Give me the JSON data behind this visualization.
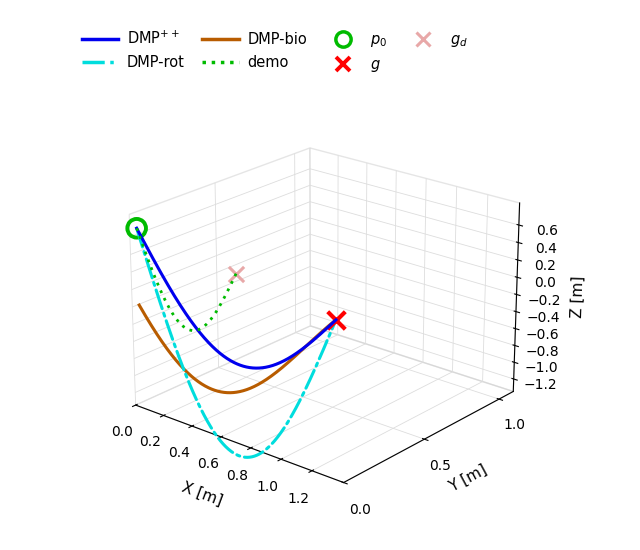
{
  "xlim": [
    0,
    1.4
  ],
  "ylim": [
    0,
    1.1
  ],
  "zlim": [
    -1.35,
    0.85
  ],
  "xlabel": "X [m]",
  "ylabel": "Y [m]",
  "zlabel": "Z [m]",
  "dmp_pp_color": "#0000ee",
  "dmp_rot_color": "#00dddd",
  "dmp_bio_color": "#b85c00",
  "demo_color": "#00bb00",
  "p0": [
    0.05,
    0.0,
    0.72
  ],
  "g": [
    1.35,
    0.0,
    0.4
  ],
  "gd": [
    0.72,
    0.0,
    0.56
  ],
  "figsize": [
    6.4,
    5.5
  ],
  "dpi": 100,
  "elev": 22,
  "azim": -50,
  "xticks": [
    0,
    0.2,
    0.4,
    0.6,
    0.8,
    1.0,
    1.2
  ],
  "yticks": [
    0,
    0.5,
    1.0
  ],
  "zticks": [
    -1.2,
    -1.0,
    -0.8,
    -0.6,
    -0.4,
    -0.2,
    0.0,
    0.2,
    0.4,
    0.6
  ],
  "legend_ncol_row1": 3,
  "legend_ncol_row2": 4
}
